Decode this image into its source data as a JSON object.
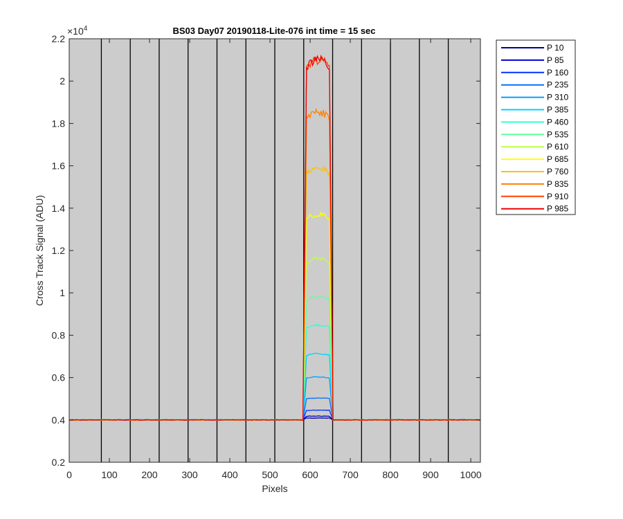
{
  "chart_data": {
    "type": "line",
    "title": "BS03 Day07 20190118-Lite-076 int time = 15 sec",
    "xlabel": "Pixels",
    "ylabel": "Cross Track Signal (ADU)",
    "y_exponent_label": "×10",
    "y_exponent_power": "4",
    "xlim": [
      0,
      1024
    ],
    "ylim": [
      2000,
      22000
    ],
    "xticks": [
      0,
      100,
      200,
      300,
      400,
      500,
      600,
      700,
      800,
      900,
      1000
    ],
    "xtick_labels": [
      "0",
      "100",
      "200",
      "300",
      "400",
      "500",
      "600",
      "700",
      "800",
      "900",
      "1000"
    ],
    "yticks": [
      2000,
      4000,
      6000,
      8000,
      10000,
      12000,
      14000,
      16000,
      18000,
      20000,
      22000
    ],
    "ytick_labels": [
      "0.2",
      "0.4",
      "0.6",
      "0.8",
      "1",
      "1.2",
      "1.4",
      "1.6",
      "1.8",
      "2",
      "2.2"
    ],
    "background_color": "#cccccc",
    "grid": false,
    "vertical_lines_x": [
      80,
      152,
      224,
      296,
      368,
      440,
      512,
      584,
      656,
      728,
      800,
      872,
      944
    ],
    "legend_position": "outside-top-right",
    "baseline": 4000,
    "step_start_x": 582,
    "step_end_x": 657,
    "series": [
      {
        "name": "P 10",
        "color": "#00008f",
        "peak": 4090
      },
      {
        "name": "P 85",
        "color": "#0000d0",
        "peak": 4180
      },
      {
        "name": "P 160",
        "color": "#0030ff",
        "peak": 4460
      },
      {
        "name": "P 235",
        "color": "#0070ff",
        "peak": 5030
      },
      {
        "name": "P 310",
        "color": "#00a0ff",
        "peak": 6020
      },
      {
        "name": "P 385",
        "color": "#00d0ff",
        "peak": 7120
      },
      {
        "name": "P 460",
        "color": "#30ffcf",
        "peak": 8470
      },
      {
        "name": "P 535",
        "color": "#60ff9f",
        "peak": 9800
      },
      {
        "name": "P 610",
        "color": "#bfff40",
        "peak": 11600
      },
      {
        "name": "P 685",
        "color": "#ffff00",
        "peak": 13700
      },
      {
        "name": "P 760",
        "color": "#ffbf00",
        "peak": 15900
      },
      {
        "name": "P 835",
        "color": "#ff8000",
        "peak": 18550
      },
      {
        "name": "P 910",
        "color": "#ff4000",
        "peak": 21000
      },
      {
        "name": "P 985",
        "color": "#ef0000",
        "peak": 21000
      }
    ]
  }
}
